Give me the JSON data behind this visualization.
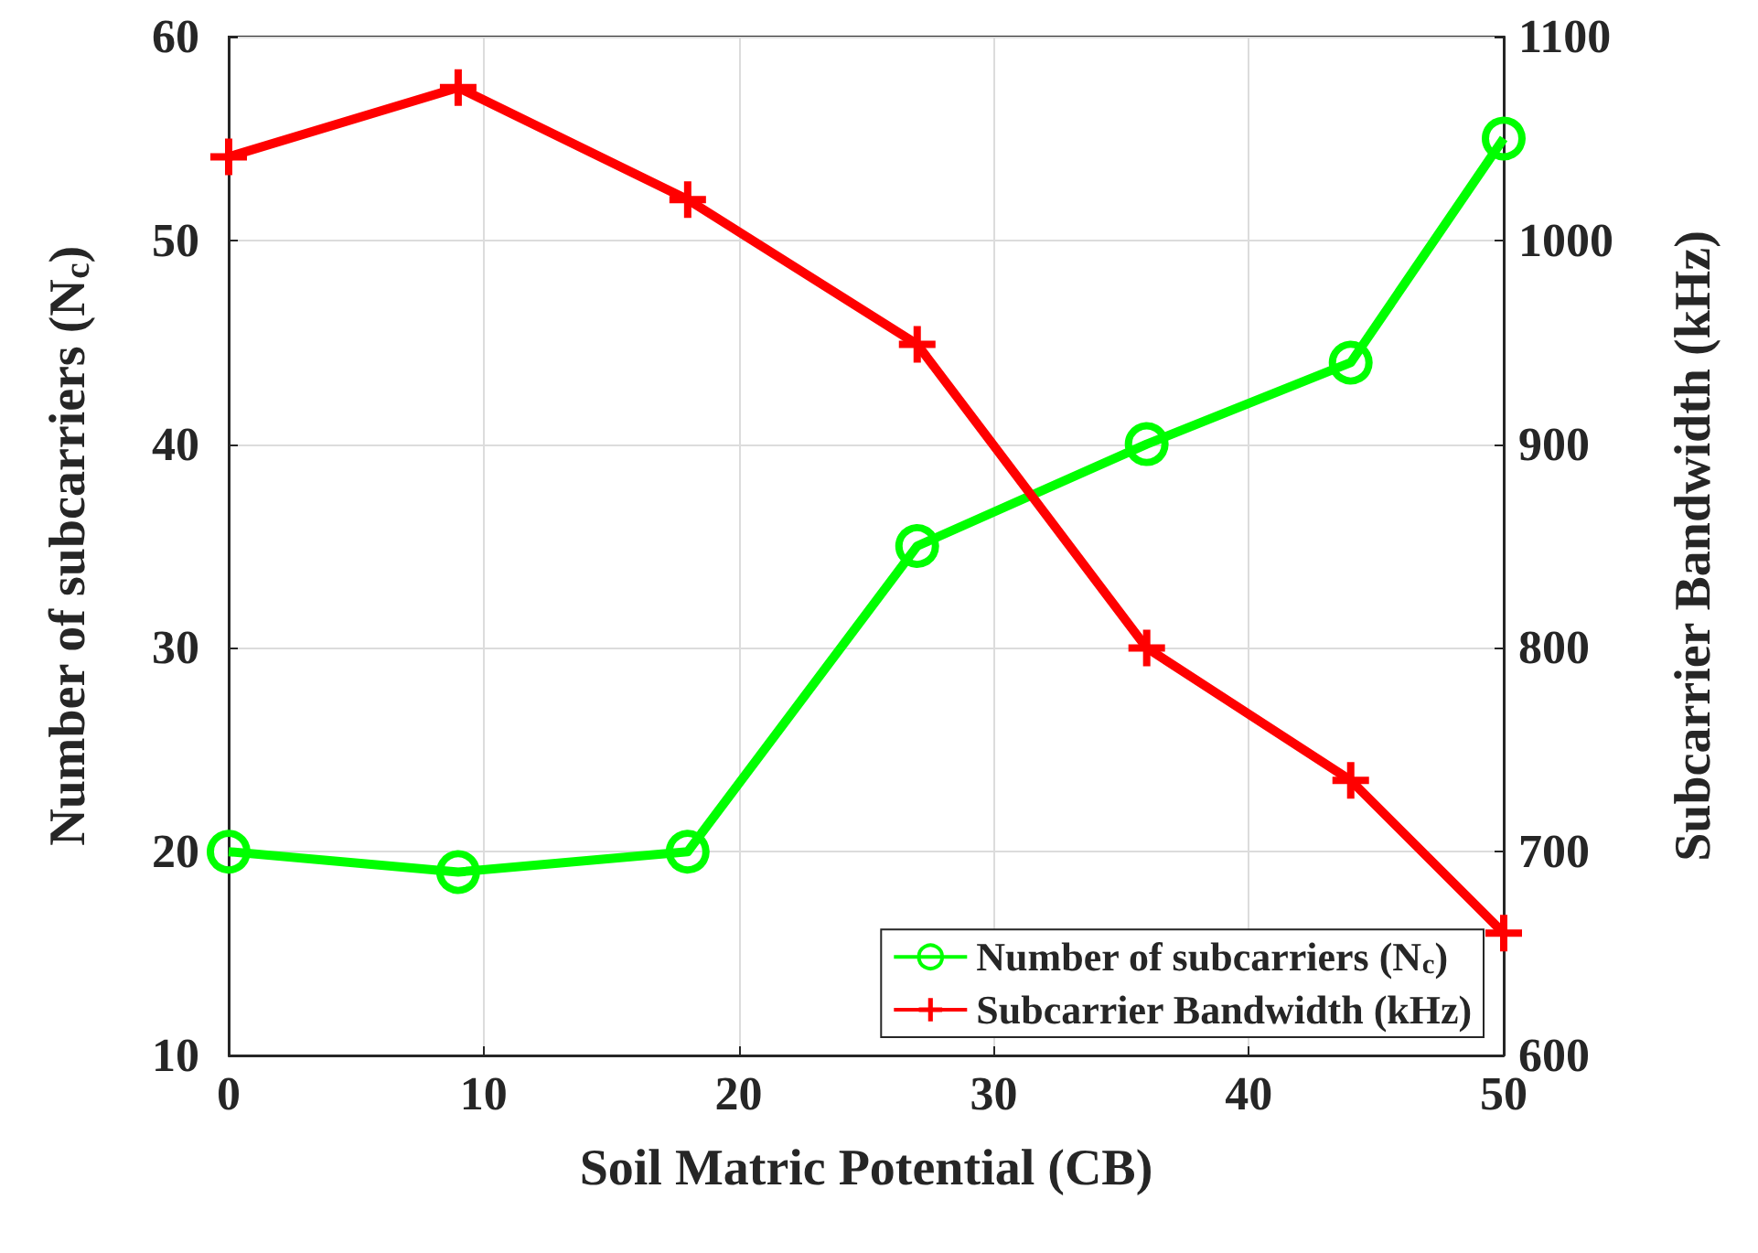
{
  "chart_data": {
    "type": "line",
    "xlabel": "Soil Matric Potential (CB)",
    "ylabel": "Number of subcarriers (N$_{c}$)",
    "y2label": "Subcarrier Bandwidth (kHz)",
    "x": [
      0,
      9,
      18,
      27,
      36,
      44,
      50
    ],
    "series": [
      {
        "name": "Number of subcarriers (N$_{c}$)",
        "color": "#00ff00",
        "marker": "circle",
        "values": [
          20,
          19,
          20,
          35,
          40,
          44,
          55
        ]
      },
      {
        "name": "Subcarrier Bandwidth (kHz)",
        "color": "#ff0000",
        "marker": "cross",
        "axis": "y2",
        "values": [
          1041,
          1075,
          1020,
          949,
          800,
          735,
          660
        ]
      }
    ],
    "xlim": [
      0,
      50
    ],
    "xticks": [
      0,
      10,
      20,
      30,
      40,
      50
    ],
    "ylim": [
      10,
      60
    ],
    "yticks": [
      10,
      20,
      30,
      40,
      50,
      60
    ],
    "y2lim": [
      600,
      1100
    ],
    "y2ticks": [
      600,
      700,
      800,
      900,
      1000,
      1100
    ],
    "grid": true,
    "legend": "bottom right",
    "line_style": "solid"
  }
}
